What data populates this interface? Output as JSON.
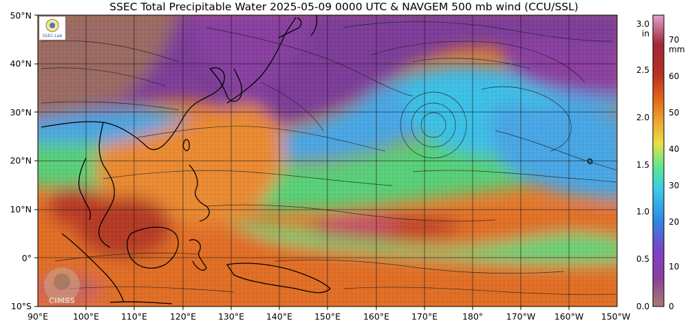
{
  "title": "SSEC Total Precipitable Water  2025-05-09 0000 UTC & NAVGEM 500 mb wind (CCU/SSL)",
  "map": {
    "lon_labels": [
      "90°E",
      "100°E",
      "110°E",
      "120°E",
      "130°E",
      "140°E",
      "150°E",
      "160°E",
      "170°E",
      "180°",
      "170°W",
      "160°W",
      "150°W"
    ],
    "lat_labels": [
      "50°N",
      "40°N",
      "30°N",
      "20°N",
      "10°N",
      "0°",
      "10°S"
    ],
    "logo_text": "CIMSS",
    "badge_text": "SSEC-Lab"
  },
  "colorbar": {
    "inch_unit": "in",
    "mm_unit": "mm",
    "inch_ticks": [
      "3.0",
      "2.5",
      "2.0",
      "1.5",
      "1.0",
      "0.5",
      "0.0"
    ],
    "mm_ticks": [
      "70",
      "60",
      "50",
      "40",
      "30",
      "20",
      "10",
      "0"
    ],
    "inch_range": [
      0.0,
      3.15
    ],
    "mm_range": [
      0,
      80
    ],
    "colors": [
      "#a57c6e",
      "#8a3fa0",
      "#7a44c8",
      "#2c8ce8",
      "#3cc8e8",
      "#5ce890",
      "#e8e040",
      "#f0a030",
      "#e06018",
      "#b83020",
      "#a02838",
      "#e0a0d0"
    ]
  },
  "colors": {
    "dry_purple": "#7c3d98",
    "land_brown": "#9a6a64",
    "moist_orange": "#e0782a",
    "mid_green": "#58cf78",
    "mid_blue": "#4aa6e4",
    "very_moist_red": "#b43a26"
  }
}
